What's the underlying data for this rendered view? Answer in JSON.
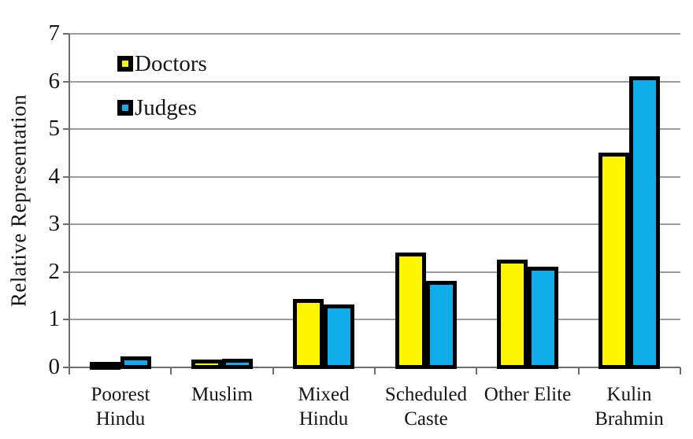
{
  "figure": {
    "background": "#ffffff",
    "ylabel": "Relative Representation"
  },
  "chart_data": {
    "type": "bar",
    "title": "",
    "xlabel": "",
    "ylabel": "Relative Representation",
    "categories": [
      "Poorest\nHindu",
      "Muslim",
      "Mixed\nHindu",
      "Scheduled\nCaste",
      "Other Elite",
      "Kulin\nBrahmin"
    ],
    "series": [
      {
        "name": "Doctors",
        "color": "#FFF500",
        "values": [
          0.07,
          0.11,
          1.38,
          2.36,
          2.21,
          4.45
        ]
      },
      {
        "name": "Judges",
        "color": "#10ADEB",
        "values": [
          0.18,
          0.14,
          1.27,
          1.77,
          2.06,
          6.06
        ]
      }
    ],
    "ylim": [
      0,
      7
    ],
    "yticks": [
      0,
      1,
      2,
      3,
      4,
      5,
      6,
      7
    ],
    "grid": true,
    "gridline_color": "#9b9b9b",
    "axis_color": "#6e6e6e",
    "bar_border_color": "#000000",
    "legend_position": "top-left-inside"
  }
}
